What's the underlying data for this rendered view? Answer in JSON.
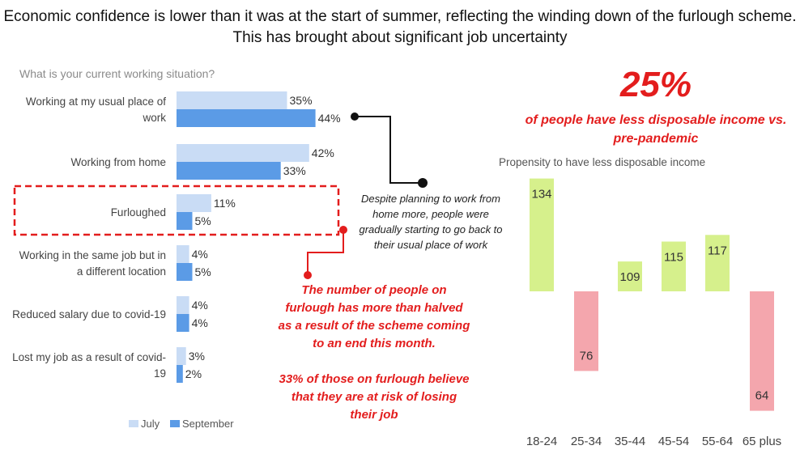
{
  "title": "Economic confidence is lower than it was at the start of summer, reflecting the winding down of the furlough scheme. This has brought about significant job uncertainty",
  "left_chart_question": "What is your current working situation?",
  "callout_text": "Despite planning to work from home more, people were gradually starting to go back to their usual place of work",
  "red_note_1": "The number of people on furlough has more than halved as a result of the scheme coming to an end this month.",
  "red_note_2": "33% of those on furlough believe that they are at risk of losing their job",
  "big_stat": "25%",
  "big_stat_desc": "of people have less disposable income vs. pre-pandemic",
  "colors": {
    "july": "#c9dcf5",
    "september": "#5b9be6",
    "positive": "#d6f08c",
    "negative": "#f4a6ad",
    "accent_red": "#e31d1d"
  },
  "chart_data": [
    {
      "type": "bar",
      "orientation": "horizontal",
      "title": "What is your current working situation?",
      "categories": [
        "Working at my usual place of work",
        "Working from home",
        "Furloughed",
        "Working in the same job but in a different location",
        "Reduced salary due to covid-19",
        "Lost my job as a result of covid-19"
      ],
      "series": [
        {
          "name": "July",
          "values": [
            35,
            42,
            11,
            4,
            4,
            3
          ],
          "labels": [
            "35%",
            "42%",
            "11%",
            "4%",
            "4%",
            "3%"
          ]
        },
        {
          "name": "September",
          "values": [
            44,
            33,
            5,
            5,
            4,
            2
          ],
          "labels": [
            "44%",
            "33%",
            "5%",
            "5%",
            "4%",
            "2%"
          ]
        }
      ],
      "legend": [
        "July",
        "September"
      ],
      "legend_position": "bottom-left",
      "highlighted_category": "Furloughed"
    },
    {
      "type": "bar",
      "title": "Propensity to have less disposable income",
      "categories": [
        "18-24",
        "25-34",
        "35-44",
        "45-54",
        "55-64",
        "65 plus"
      ],
      "values": [
        134,
        76,
        109,
        115,
        117,
        64
      ],
      "baseline": 100
    }
  ]
}
